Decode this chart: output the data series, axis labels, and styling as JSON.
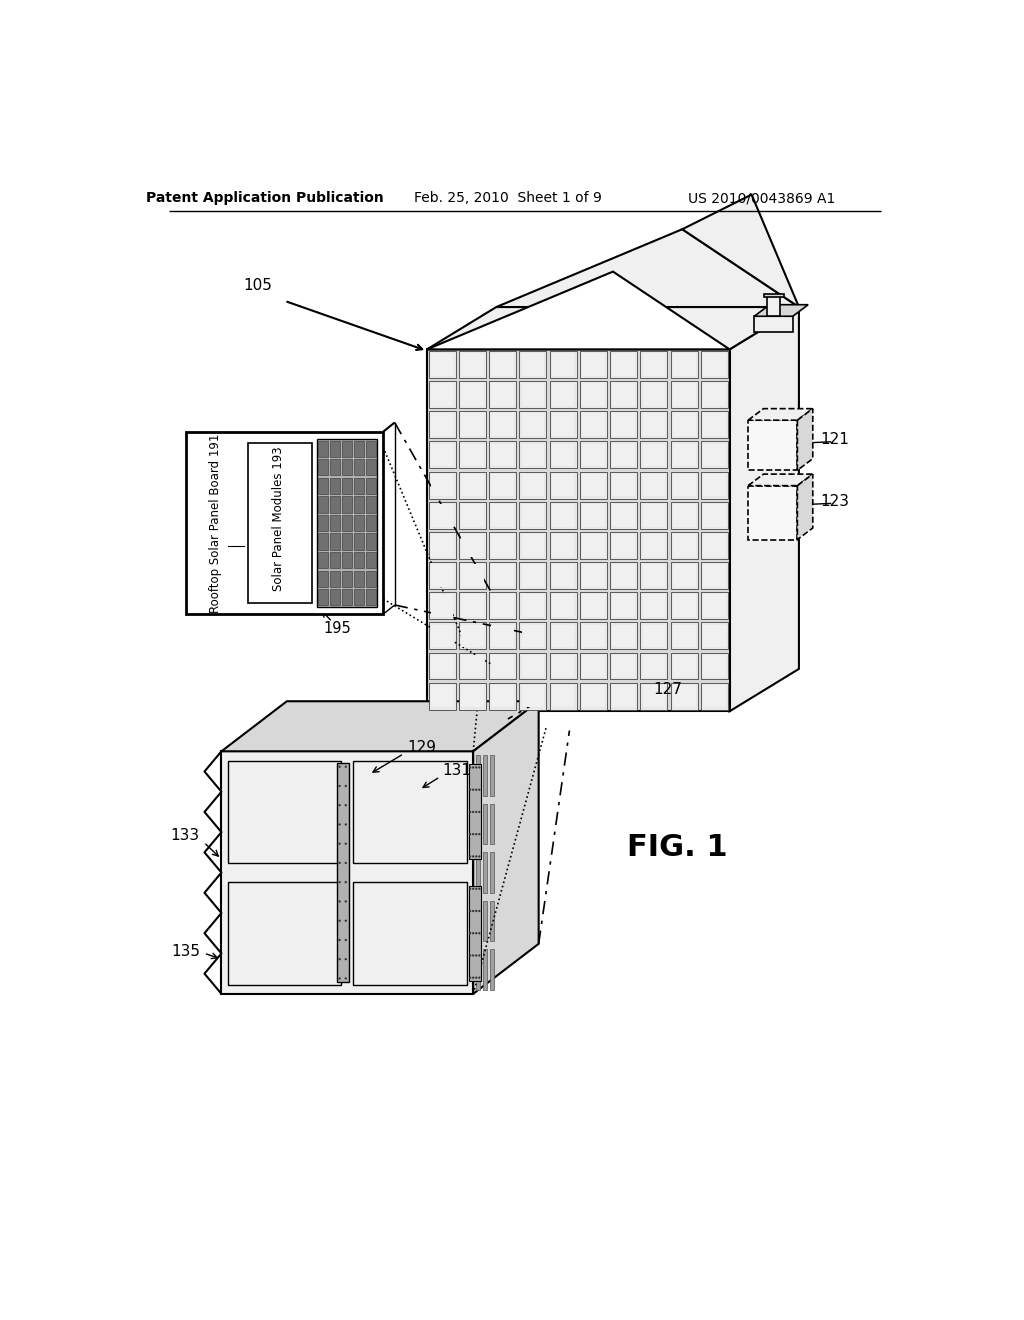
{
  "bg_color": "#ffffff",
  "header_left": "Patent Application Publication",
  "header_center": "Feb. 25, 2010  Sheet 1 of 9",
  "header_right": "US 2010/0043869 A1",
  "fig_label": "FIG. 1",
  "lc": "#000000",
  "fc_white": "#ffffff",
  "fc_light": "#f0f0f0",
  "fc_mid": "#d8d8d8",
  "fc_dark": "#b0b0b0",
  "fc_panel": "#707070"
}
